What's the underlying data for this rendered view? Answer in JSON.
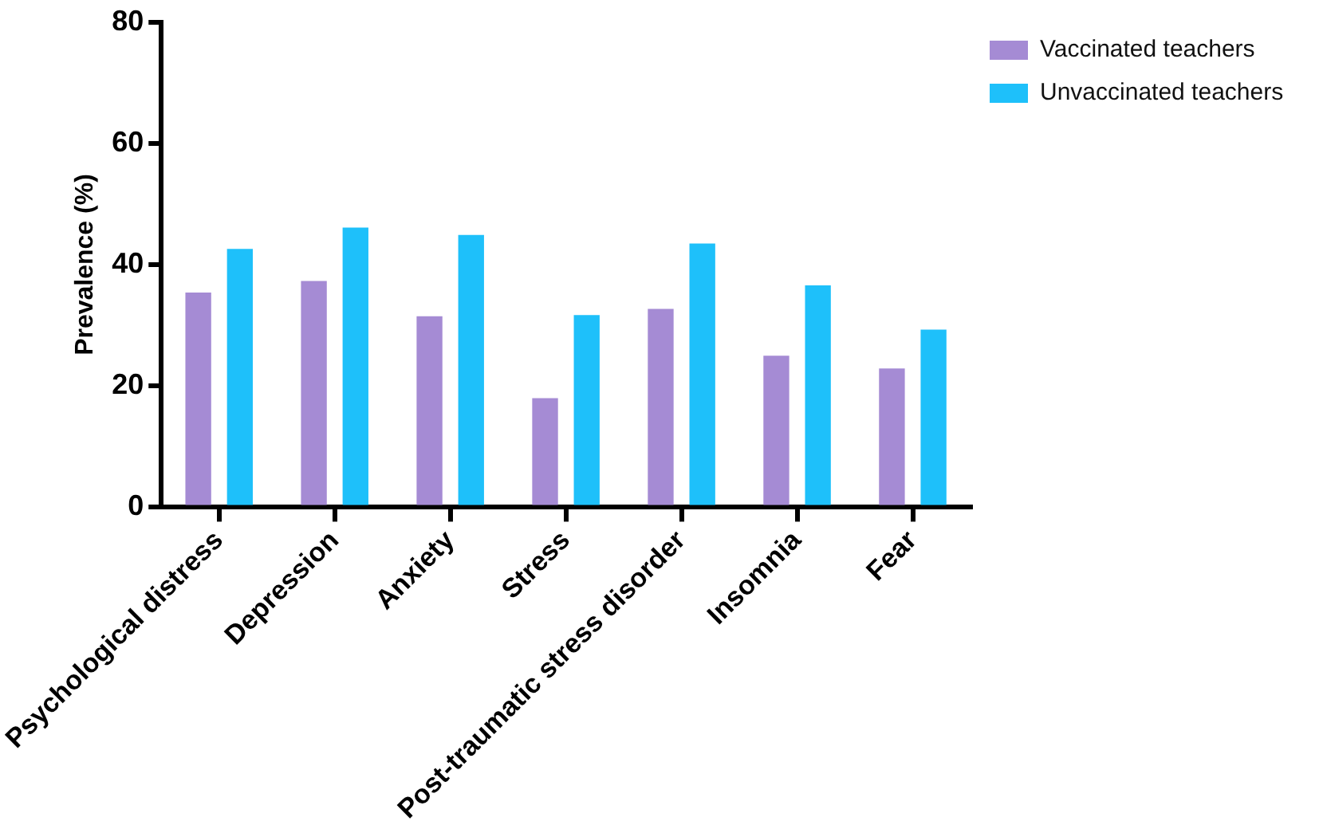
{
  "chart_data": {
    "type": "bar",
    "ylabel": "Prevalence (%)",
    "categories": [
      "Psychological distress",
      "Depression",
      "Anxiety",
      "Stress",
      "Post-traumatic stress disorder",
      "Insomnia",
      "Fear"
    ],
    "series": [
      {
        "name": "Vaccinated teachers",
        "color": "#a58bd4",
        "values": [
          35.4,
          37.3,
          31.5,
          18,
          32.7,
          25,
          22.9
        ]
      },
      {
        "name": "Unvaccinated teachers",
        "color": "#1ec0fa",
        "values": [
          42.6,
          46.1,
          44.9,
          31.7,
          43.5,
          36.6,
          29.3
        ]
      }
    ],
    "ylim": [
      0,
      80
    ],
    "yticks": [
      0,
      20,
      40,
      60,
      80
    ],
    "grid": false,
    "legend": "top right"
  }
}
